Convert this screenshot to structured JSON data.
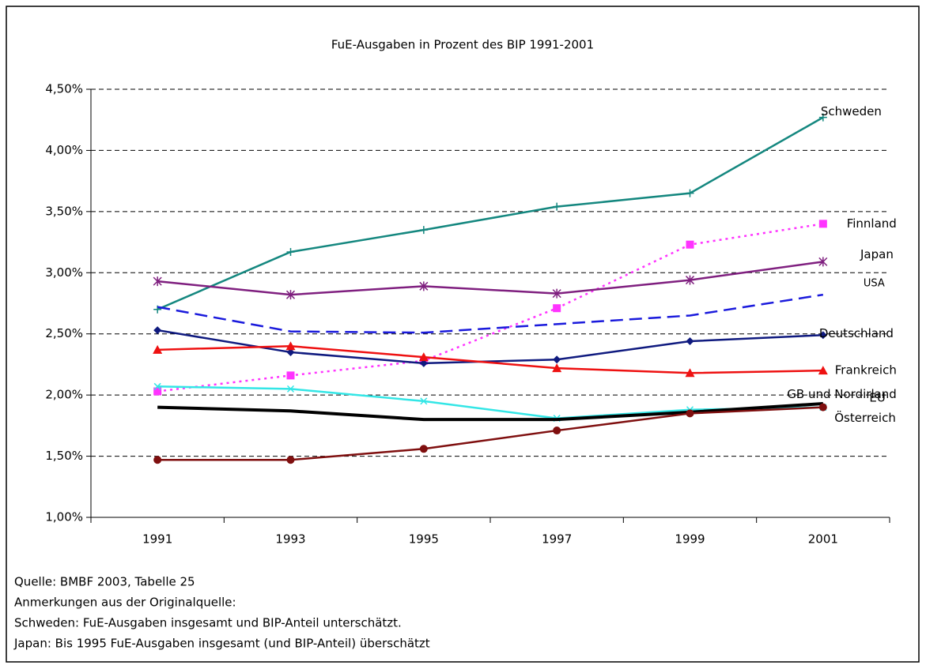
{
  "chart_data": {
    "type": "line",
    "title": "FuE-Ausgaben in Prozent des BIP 1991-2001",
    "categories": [
      "1991",
      "1993",
      "1995",
      "1997",
      "1999",
      "2001"
    ],
    "ylim": [
      1.0,
      4.5
    ],
    "yticks": [
      {
        "value": 1.0,
        "label": "1,00%"
      },
      {
        "value": 1.5,
        "label": "1,50%"
      },
      {
        "value": 2.0,
        "label": "2,00%"
      },
      {
        "value": 2.5,
        "label": "2,50%"
      },
      {
        "value": 3.0,
        "label": "3,00%"
      },
      {
        "value": 3.5,
        "label": "3,50%"
      },
      {
        "value": 4.0,
        "label": "4,00%"
      },
      {
        "value": 4.5,
        "label": "4,50%"
      }
    ],
    "grid": true,
    "series": [
      {
        "name": "Schweden",
        "color": "#14877f",
        "marker": "plus",
        "style": "solid",
        "values": [
          2.7,
          3.17,
          3.35,
          3.54,
          3.65,
          4.27
        ]
      },
      {
        "name": "Finnland",
        "color": "#ff33ff",
        "marker": "square",
        "style": "dotted",
        "values": [
          2.03,
          2.16,
          2.28,
          2.71,
          3.23,
          3.4
        ]
      },
      {
        "name": "Japan",
        "color": "#7f1f7f",
        "marker": "asterisk",
        "style": "solid",
        "values": [
          2.93,
          2.82,
          2.89,
          2.83,
          2.94,
          3.09
        ]
      },
      {
        "name": "USA",
        "color": "#1a1adc",
        "marker": "none",
        "style": "dashed",
        "values": [
          2.72,
          2.52,
          2.51,
          2.58,
          2.65,
          2.82
        ]
      },
      {
        "name": "Deutschland",
        "color": "#0f1a7f",
        "marker": "diamond",
        "style": "solid",
        "values": [
          2.53,
          2.35,
          2.26,
          2.29,
          2.44,
          2.49
        ]
      },
      {
        "name": "Frankreich",
        "color": "#ee1111",
        "marker": "triangle",
        "style": "solid",
        "values": [
          2.37,
          2.4,
          2.31,
          2.22,
          2.18,
          2.2
        ]
      },
      {
        "name": "GB und Nordirland",
        "color": "#33e6e6",
        "marker": "cross",
        "style": "solid",
        "values": [
          2.07,
          2.05,
          1.95,
          1.81,
          1.88,
          1.9
        ]
      },
      {
        "name": "EU",
        "color": "#000000",
        "marker": "none",
        "style": "thick",
        "values": [
          1.9,
          1.87,
          1.8,
          1.8,
          1.86,
          1.93
        ]
      },
      {
        "name": "Österreich",
        "color": "#7f0f0f",
        "marker": "circle",
        "style": "solid",
        "values": [
          1.47,
          1.47,
          1.56,
          1.71,
          1.85,
          1.9
        ]
      }
    ],
    "notes": [
      "Quelle: BMBF 2003, Tabelle 25",
      "Anmerkungen aus der Originalquelle:",
      "Schweden: FuE-Ausgaben insgesamt und BIP-Anteil unterschätzt.",
      "Japan: Bis 1995 FuE-Ausgaben insgesamt (und BIP-Anteil) überschätzt"
    ]
  }
}
